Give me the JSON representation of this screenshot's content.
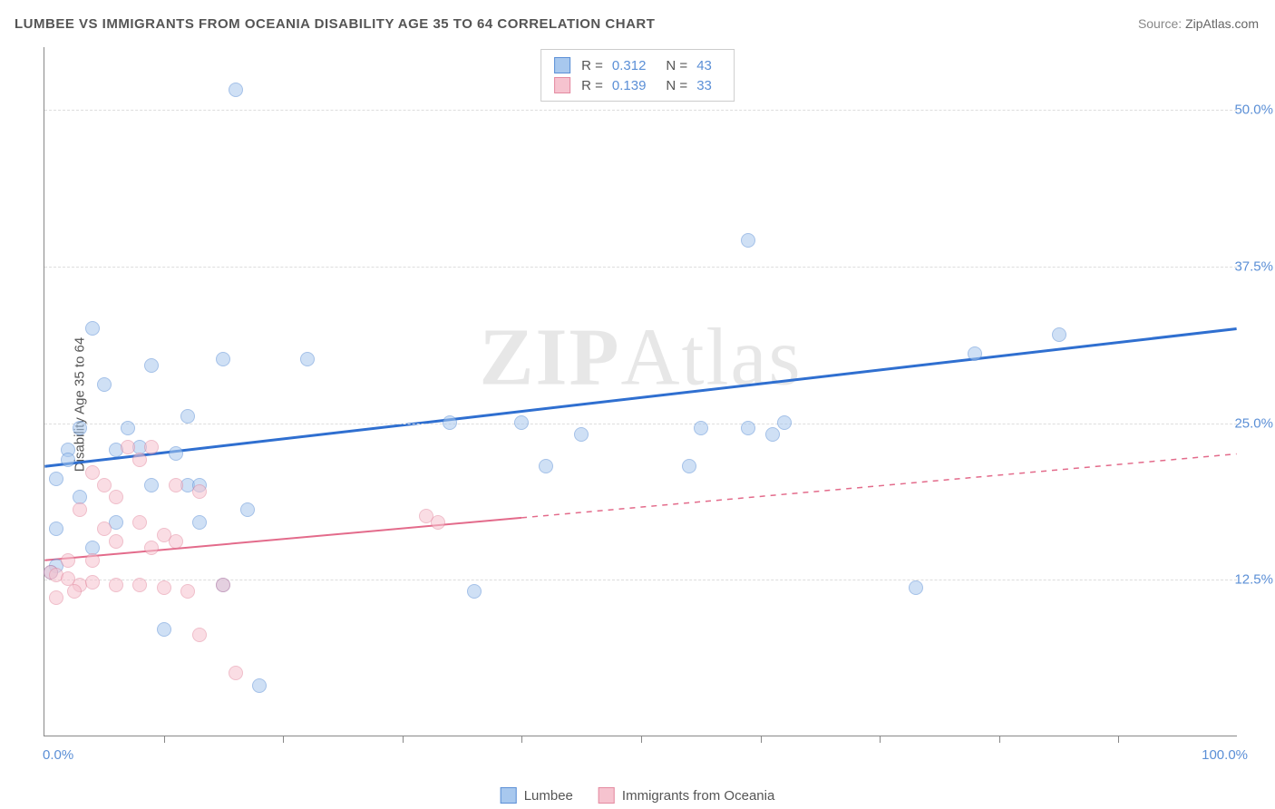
{
  "title": "LUMBEE VS IMMIGRANTS FROM OCEANIA DISABILITY AGE 35 TO 64 CORRELATION CHART",
  "source_label": "Source:",
  "source_value": "ZipAtlas.com",
  "y_axis_label": "Disability Age 35 to 64",
  "watermark_bold": "ZIP",
  "watermark_rest": "Atlas",
  "chart": {
    "type": "scatter",
    "background_color": "#ffffff",
    "grid_color": "#dddddd",
    "axis_color": "#888888",
    "xlim": [
      0,
      100
    ],
    "ylim": [
      0,
      55
    ],
    "x_min_label": "0.0%",
    "x_max_label": "100.0%",
    "xtick_positions": [
      10,
      20,
      30,
      40,
      50,
      60,
      70,
      80,
      90
    ],
    "yticks": [
      {
        "value": 12.5,
        "label": "12.5%"
      },
      {
        "value": 25.0,
        "label": "25.0%"
      },
      {
        "value": 37.5,
        "label": "37.5%"
      },
      {
        "value": 50.0,
        "label": "50.0%"
      }
    ],
    "tick_label_color": "#5b8fd6",
    "marker_radius": 8,
    "marker_opacity": 0.55,
    "series": [
      {
        "name": "Lumbee",
        "color_fill": "#a8c8ee",
        "color_stroke": "#5b8fd6",
        "r_label": "R =",
        "r_value": "0.312",
        "n_label": "N =",
        "n_value": "43",
        "trend": {
          "x1": 0,
          "y1": 21.5,
          "x2": 100,
          "y2": 32.5,
          "color": "#2f6fd0",
          "width": 3,
          "dash_after_x": null
        },
        "points": [
          {
            "x": 16,
            "y": 51.5
          },
          {
            "x": 59,
            "y": 39.5
          },
          {
            "x": 4,
            "y": 32.5
          },
          {
            "x": 85,
            "y": 32.0
          },
          {
            "x": 9,
            "y": 29.5
          },
          {
            "x": 15,
            "y": 30.0
          },
          {
            "x": 22,
            "y": 30.0
          },
          {
            "x": 78,
            "y": 30.5
          },
          {
            "x": 5,
            "y": 28.0
          },
          {
            "x": 12,
            "y": 25.5
          },
          {
            "x": 3,
            "y": 24.5
          },
          {
            "x": 7,
            "y": 24.5
          },
          {
            "x": 2,
            "y": 22.8
          },
          {
            "x": 6,
            "y": 22.8
          },
          {
            "x": 59,
            "y": 24.5
          },
          {
            "x": 40,
            "y": 25.0
          },
          {
            "x": 34,
            "y": 25.0
          },
          {
            "x": 45,
            "y": 24.0
          },
          {
            "x": 55,
            "y": 24.5
          },
          {
            "x": 62,
            "y": 25.0
          },
          {
            "x": 1,
            "y": 20.5
          },
          {
            "x": 2,
            "y": 22.0
          },
          {
            "x": 42,
            "y": 21.5
          },
          {
            "x": 54,
            "y": 21.5
          },
          {
            "x": 61,
            "y": 24.0
          },
          {
            "x": 3,
            "y": 19.0
          },
          {
            "x": 9,
            "y": 20.0
          },
          {
            "x": 12,
            "y": 20.0
          },
          {
            "x": 13,
            "y": 20.0
          },
          {
            "x": 17,
            "y": 18.0
          },
          {
            "x": 6,
            "y": 17.0
          },
          {
            "x": 1,
            "y": 13.5
          },
          {
            "x": 0.5,
            "y": 13.0
          },
          {
            "x": 36,
            "y": 11.5
          },
          {
            "x": 73,
            "y": 11.8
          },
          {
            "x": 15,
            "y": 12.0
          },
          {
            "x": 10,
            "y": 8.5
          },
          {
            "x": 18,
            "y": 4.0
          },
          {
            "x": 13,
            "y": 17.0
          },
          {
            "x": 1,
            "y": 16.5
          },
          {
            "x": 4,
            "y": 15.0
          },
          {
            "x": 8,
            "y": 23.0
          },
          {
            "x": 11,
            "y": 22.5
          }
        ]
      },
      {
        "name": "Immigrants from Oceania",
        "color_fill": "#f6c3cf",
        "color_stroke": "#e48aa0",
        "r_label": "R =",
        "r_value": "0.139",
        "n_label": "N =",
        "n_value": "33",
        "trend": {
          "x1": 0,
          "y1": 14.0,
          "x2": 100,
          "y2": 22.5,
          "color": "#e36b8b",
          "width": 2,
          "dash_after_x": 40
        },
        "points": [
          {
            "x": 7,
            "y": 23.0
          },
          {
            "x": 9,
            "y": 23.0
          },
          {
            "x": 5,
            "y": 20.0
          },
          {
            "x": 11,
            "y": 20.0
          },
          {
            "x": 13,
            "y": 19.5
          },
          {
            "x": 3,
            "y": 18.0
          },
          {
            "x": 32,
            "y": 17.5
          },
          {
            "x": 33,
            "y": 17.0
          },
          {
            "x": 8,
            "y": 17.0
          },
          {
            "x": 5,
            "y": 16.5
          },
          {
            "x": 10,
            "y": 16.0
          },
          {
            "x": 6,
            "y": 15.5
          },
          {
            "x": 9,
            "y": 15.0
          },
          {
            "x": 11,
            "y": 15.5
          },
          {
            "x": 2,
            "y": 14.0
          },
          {
            "x": 4,
            "y": 14.0
          },
          {
            "x": 0.5,
            "y": 13.0
          },
          {
            "x": 1,
            "y": 12.8
          },
          {
            "x": 2,
            "y": 12.5
          },
          {
            "x": 3,
            "y": 12.0
          },
          {
            "x": 4,
            "y": 12.2
          },
          {
            "x": 6,
            "y": 12.0
          },
          {
            "x": 8,
            "y": 12.0
          },
          {
            "x": 10,
            "y": 11.8
          },
          {
            "x": 12,
            "y": 11.5
          },
          {
            "x": 15,
            "y": 12.0
          },
          {
            "x": 1,
            "y": 11.0
          },
          {
            "x": 2.5,
            "y": 11.5
          },
          {
            "x": 13,
            "y": 8.0
          },
          {
            "x": 16,
            "y": 5.0
          },
          {
            "x": 6,
            "y": 19.0
          },
          {
            "x": 4,
            "y": 21.0
          },
          {
            "x": 8,
            "y": 22.0
          }
        ]
      }
    ]
  }
}
